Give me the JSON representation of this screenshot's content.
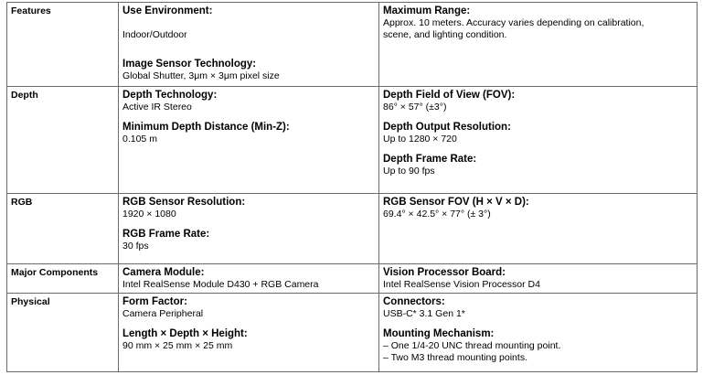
{
  "sections": [
    {
      "name": "Features",
      "left": [
        {
          "label": "Use Environment:",
          "value": [
            "Indoor/Outdoor"
          ]
        },
        {
          "label": "Image Sensor Technology:",
          "value": [
            "Global Shutter, 3μm × 3μm pixel size"
          ]
        }
      ],
      "right": [
        {
          "label": "Maximum Range:",
          "value": [
            "Approx. 10 meters. Accuracy varies depending on calibration,",
            "scene, and lighting condition."
          ]
        }
      ]
    },
    {
      "name": "Depth",
      "left": [
        {
          "label": "Depth Technology:",
          "value": [
            "Active IR Stereo"
          ]
        },
        {
          "label": "Minimum Depth Distance (Min-Z):",
          "value": [
            "0.105 m"
          ]
        }
      ],
      "right": [
        {
          "label": "Depth Field of View (FOV):",
          "value": [
            "86° × 57° (±3°)"
          ]
        },
        {
          "label": "Depth Output Resolution:",
          "value": [
            "Up to 1280 × 720"
          ]
        },
        {
          "label": "Depth Frame Rate:",
          "value": [
            "Up to 90 fps"
          ]
        }
      ]
    },
    {
      "name": "RGB",
      "left": [
        {
          "label": "RGB Sensor Resolution:",
          "value": [
            "1920 × 1080"
          ]
        },
        {
          "label": "RGB Frame Rate:",
          "value": [
            "30 fps"
          ]
        }
      ],
      "right": [
        {
          "label": "RGB Sensor FOV (H × V × D):",
          "value": [
            "69.4° × 42.5° × 77° (± 3°)"
          ]
        }
      ]
    },
    {
      "name": "Major Components",
      "left": [
        {
          "label": "Camera Module:",
          "value": [
            "Intel RealSense Module D430 + RGB Camera"
          ]
        }
      ],
      "right": [
        {
          "label": "Vision Processor Board:",
          "value": [
            "Intel RealSense Vision Processor D4"
          ]
        }
      ]
    },
    {
      "name": "Physical",
      "left": [
        {
          "label": "Form Factor:",
          "value": [
            "Camera Peripheral"
          ]
        },
        {
          "label": "Length × Depth × Height:",
          "value": [
            "90 mm × 25 mm × 25 mm"
          ]
        }
      ],
      "right": [
        {
          "label": "Connectors:",
          "value": [
            "USB‑C* 3.1 Gen 1*"
          ]
        },
        {
          "label": "Mounting Mechanism:",
          "value": [
            "– One 1/4‑20 UNC thread mounting point.",
            "– Two M3 thread mounting points."
          ]
        }
      ]
    }
  ]
}
